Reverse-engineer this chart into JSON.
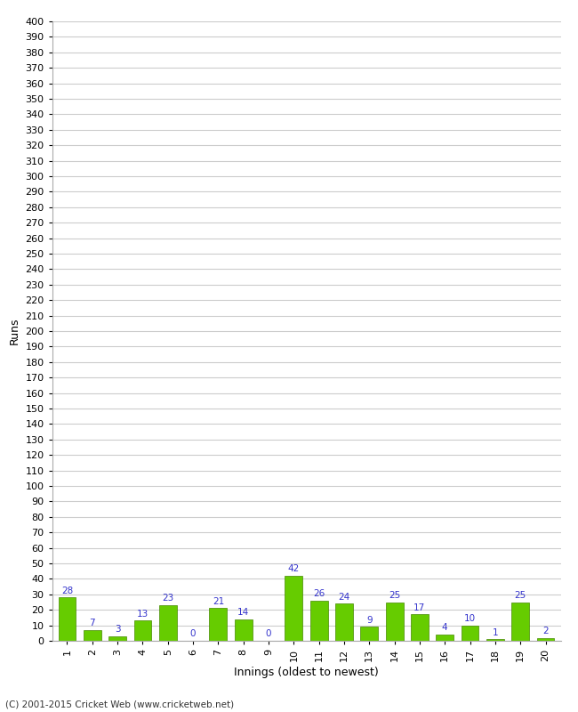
{
  "xlabel": "Innings (oldest to newest)",
  "ylabel": "Runs",
  "categories": [
    1,
    2,
    3,
    4,
    5,
    6,
    7,
    8,
    9,
    10,
    11,
    12,
    13,
    14,
    15,
    16,
    17,
    18,
    19,
    20
  ],
  "values": [
    28,
    7,
    3,
    13,
    23,
    0,
    21,
    14,
    0,
    42,
    26,
    24,
    9,
    25,
    17,
    4,
    10,
    1,
    25,
    2
  ],
  "bar_color": "#66cc00",
  "bar_edge_color": "#448800",
  "label_color": "#3333cc",
  "ylim": [
    0,
    400
  ],
  "yticks": [
    0,
    10,
    20,
    30,
    40,
    50,
    60,
    70,
    80,
    90,
    100,
    110,
    120,
    130,
    140,
    150,
    160,
    170,
    180,
    190,
    200,
    210,
    220,
    230,
    240,
    250,
    260,
    270,
    280,
    290,
    300,
    310,
    320,
    330,
    340,
    350,
    360,
    370,
    380,
    390,
    400
  ],
  "background_color": "#ffffff",
  "grid_color": "#cccccc",
  "footer_text": "(C) 2001-2015 Cricket Web (www.cricketweb.net)",
  "axis_label_fontsize": 9,
  "tick_fontsize": 8,
  "bar_label_fontsize": 7.5,
  "footer_fontsize": 7.5
}
